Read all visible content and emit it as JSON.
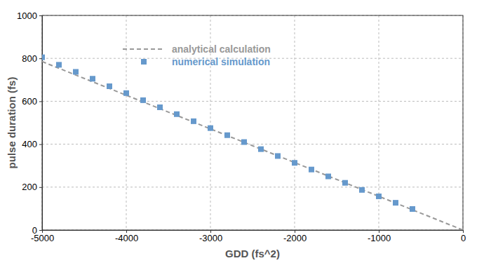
{
  "chart_data": {
    "type": "scatter",
    "x_label": "GDD (fs^2)",
    "y_label": "pulse duration (fs)",
    "xlim": [
      -5000,
      0
    ],
    "ylim": [
      0,
      1000
    ],
    "xticks": [
      -5000,
      -4000,
      -3000,
      -2000,
      -1000,
      0
    ],
    "yticks": [
      0,
      200,
      400,
      600,
      800,
      1000
    ],
    "grid": true,
    "legend": "top",
    "series": [
      {
        "name": "analytical calculation",
        "type": "line",
        "line_style": "dashed",
        "color": "#999999",
        "x": [
          -5000,
          -2500,
          0
        ],
        "values": [
          785,
          393,
          0
        ]
      },
      {
        "name": "numerical simulation",
        "type": "scatter",
        "marker": "square",
        "color": "#6699cc",
        "x": [
          -5000,
          -4800,
          -4600,
          -4400,
          -4200,
          -4000,
          -3800,
          -3600,
          -3400,
          -3200,
          -3000,
          -2800,
          -2600,
          -2400,
          -2200,
          -2000,
          -1800,
          -1600,
          -1400,
          -1200,
          -1000,
          -800,
          -600
        ],
        "values": [
          805,
          770,
          737,
          705,
          670,
          638,
          605,
          572,
          540,
          507,
          475,
          442,
          410,
          377,
          345,
          313,
          282,
          250,
          220,
          187,
          157,
          127,
          98
        ]
      }
    ]
  }
}
